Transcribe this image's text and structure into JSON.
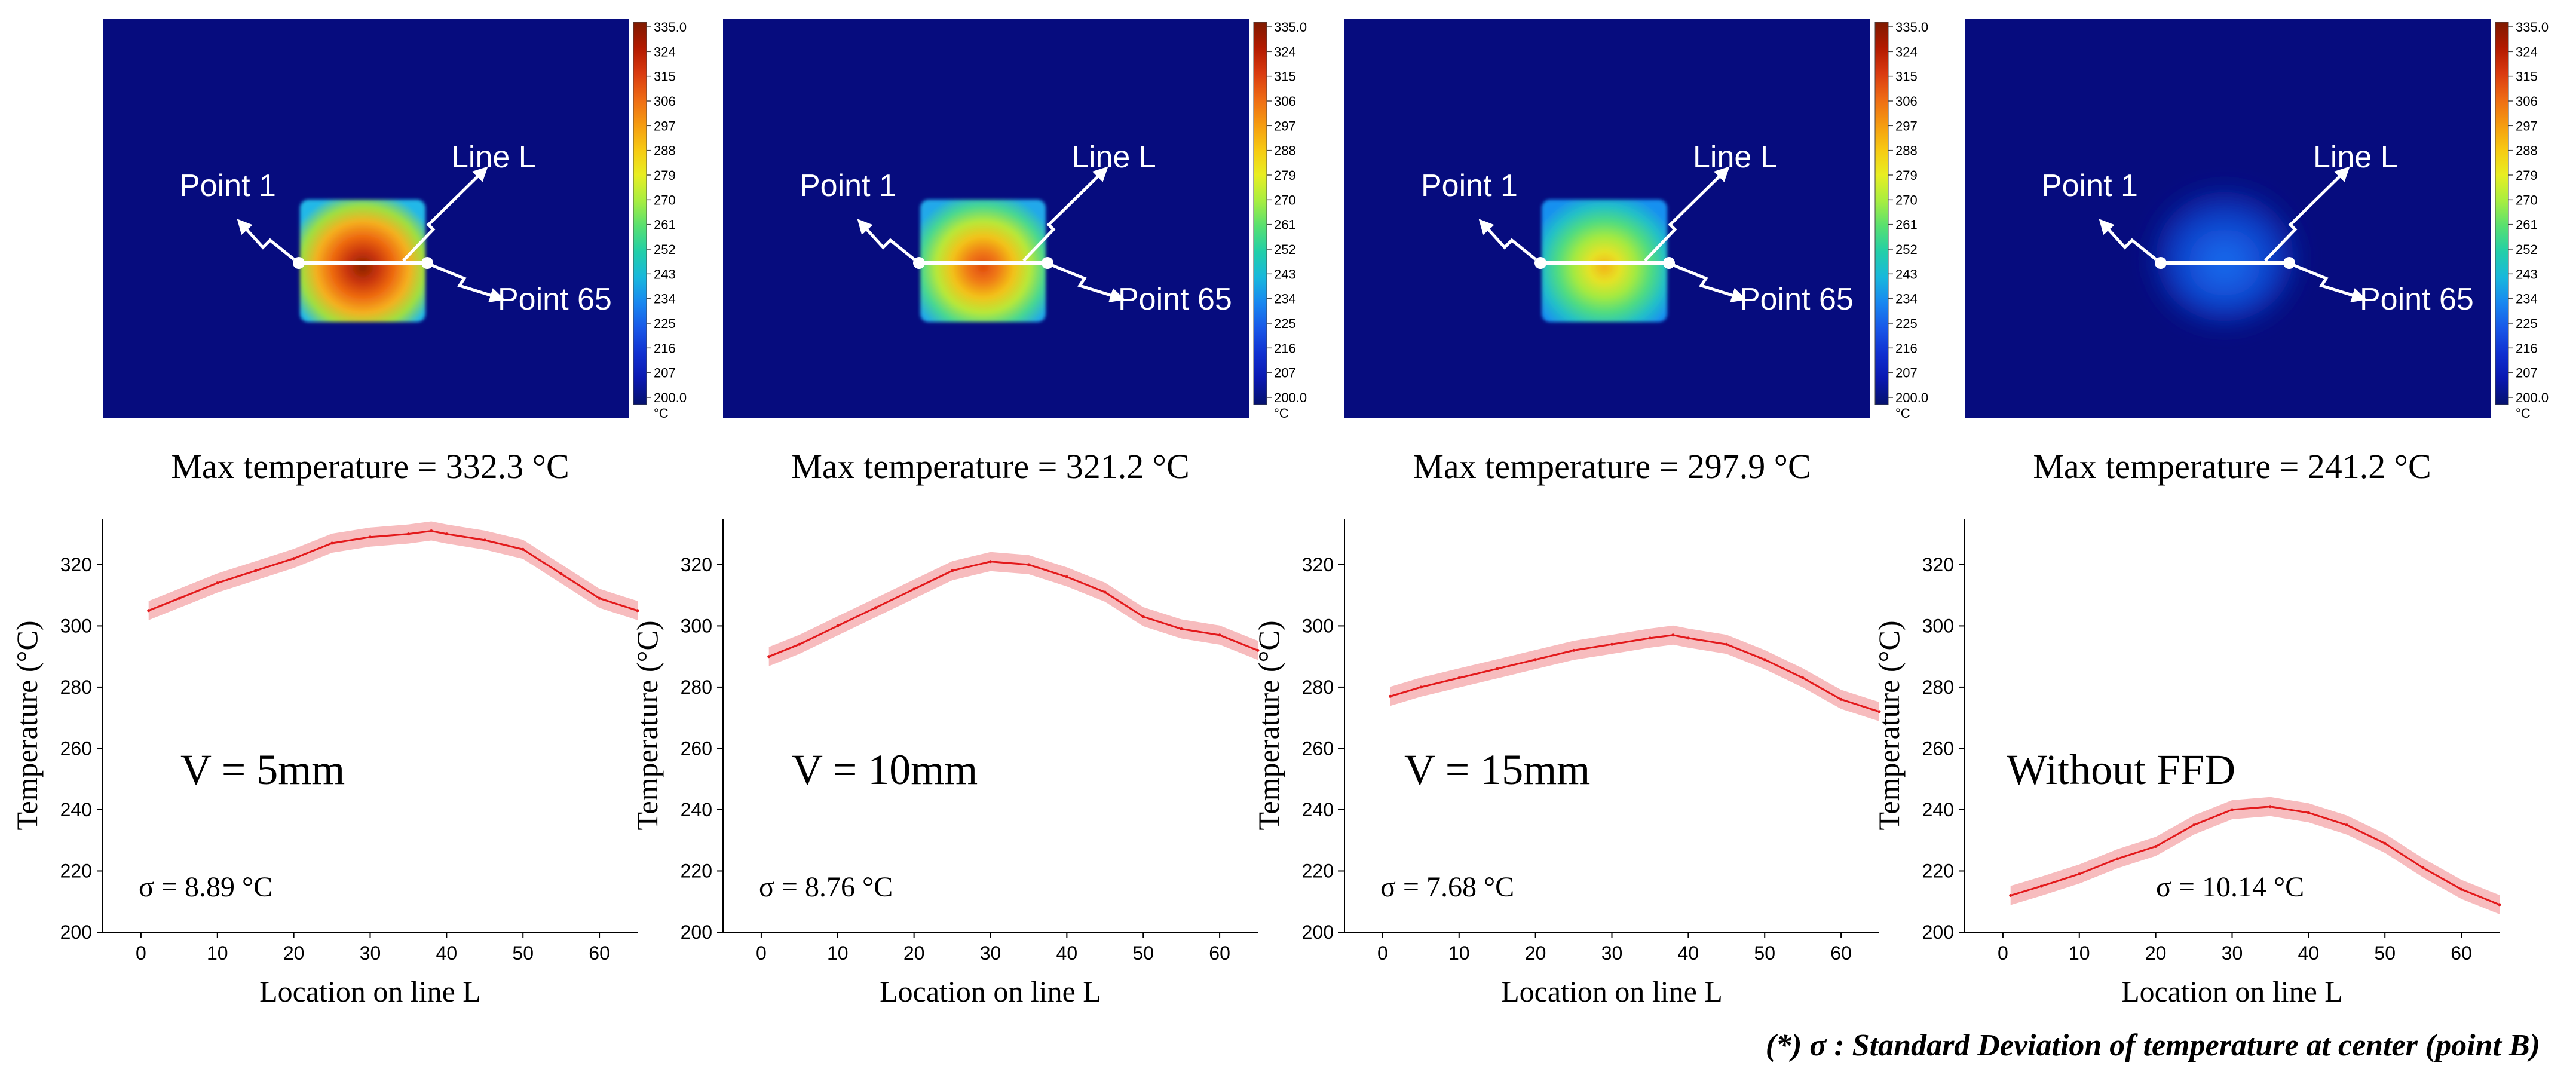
{
  "footnote": "(*) σ : Standard Deviation of temperature at center (point B)",
  "colorbar": {
    "ticks": [
      "335.0",
      "324",
      "315",
      "306",
      "297",
      "288",
      "279",
      "270",
      "261",
      "252",
      "243",
      "234",
      "225",
      "216",
      "207",
      "200.0"
    ],
    "unit": "°C",
    "colors": [
      "#7f1a00",
      "#b21a00",
      "#d93a10",
      "#ee6a14",
      "#f59a10",
      "#f7c912",
      "#e8ee22",
      "#a8ee40",
      "#58e070",
      "#22cfa8",
      "#18b8dc",
      "#1888f0",
      "#1858e8",
      "#1030d0",
      "#0a18b0",
      "#06126e"
    ]
  },
  "thermal_panels": [
    {
      "max_label": "Max temperature = 332.3 °C",
      "point1": "Point 1",
      "point65": "Point 65",
      "line_label": "Line L",
      "hotspot": "square-hot"
    },
    {
      "max_label": "Max temperature = 321.2 °C",
      "point1": "Point 1",
      "point65": "Point 65",
      "line_label": "Line L",
      "hotspot": "square-warm"
    },
    {
      "max_label": "Max temperature = 297.9 °C",
      "point1": "Point 1",
      "point65": "Point 65",
      "line_label": "Line L",
      "hotspot": "square-mild"
    },
    {
      "max_label": "Max temperature = 241.2 °C",
      "point1": "Point 1",
      "point65": "Point 65",
      "line_label": "Line L",
      "hotspot": "diffuse-blue"
    }
  ],
  "chart_data": [
    {
      "type": "line",
      "title": "V = 5mm",
      "annotation": "σ = 8.89 °C",
      "xlabel": "Location on line L",
      "ylabel": "Temperature (°C)",
      "xlim": [
        -5,
        65
      ],
      "ylim": [
        200,
        335
      ],
      "xticks": [
        0,
        10,
        20,
        30,
        40,
        50,
        60
      ],
      "yticks": [
        200,
        220,
        240,
        260,
        280,
        300,
        320
      ],
      "series": [
        {
          "name": "Temperature",
          "color": "#e31a1c",
          "band_color": "#f4a6a8",
          "x": [
            1,
            5,
            10,
            15,
            20,
            25,
            30,
            35,
            38,
            40,
            45,
            50,
            55,
            60,
            65
          ],
          "values": [
            305,
            309,
            314,
            318,
            322,
            327,
            329,
            330,
            331,
            330,
            328,
            325,
            317,
            309,
            305
          ]
        }
      ]
    },
    {
      "type": "line",
      "title": "V = 10mm",
      "annotation": "σ = 8.76 °C",
      "xlabel": "Location on line L",
      "ylabel": "Temperature (°C)",
      "xlim": [
        -5,
        65
      ],
      "ylim": [
        200,
        335
      ],
      "xticks": [
        0,
        10,
        20,
        30,
        40,
        50,
        60
      ],
      "yticks": [
        200,
        220,
        240,
        260,
        280,
        300,
        320
      ],
      "series": [
        {
          "name": "Temperature",
          "color": "#e31a1c",
          "band_color": "#f4a6a8",
          "x": [
            1,
            5,
            10,
            15,
            20,
            25,
            30,
            35,
            40,
            45,
            50,
            55,
            60,
            65
          ],
          "values": [
            290,
            294,
            300,
            306,
            312,
            318,
            321,
            320,
            316,
            311,
            303,
            299,
            297,
            292
          ]
        }
      ]
    },
    {
      "type": "line",
      "title": "V = 15mm",
      "annotation": "σ = 7.68 °C",
      "xlabel": "Location on line L",
      "ylabel": "Temperature (°C)",
      "xlim": [
        -5,
        65
      ],
      "ylim": [
        200,
        335
      ],
      "xticks": [
        0,
        10,
        20,
        30,
        40,
        50,
        60
      ],
      "yticks": [
        200,
        220,
        240,
        260,
        280,
        300,
        320
      ],
      "series": [
        {
          "name": "Temperature",
          "color": "#e31a1c",
          "band_color": "#f4a6a8",
          "x": [
            1,
            5,
            10,
            15,
            20,
            25,
            30,
            35,
            38,
            40,
            45,
            50,
            55,
            60,
            65
          ],
          "values": [
            277,
            280,
            283,
            286,
            289,
            292,
            294,
            296,
            297,
            296,
            294,
            289,
            283,
            276,
            272
          ]
        }
      ]
    },
    {
      "type": "line",
      "title": "Without FFD",
      "annotation": "σ = 10.14 °C",
      "xlabel": "Location on line L",
      "ylabel": "Temperature (°C)",
      "xlim": [
        -5,
        65
      ],
      "ylim": [
        200,
        335
      ],
      "xticks": [
        0,
        10,
        20,
        30,
        40,
        50,
        60
      ],
      "yticks": [
        200,
        220,
        240,
        260,
        280,
        300,
        320
      ],
      "series": [
        {
          "name": "Temperature",
          "color": "#e31a1c",
          "band_color": "#f4a6a8",
          "x": [
            1,
            5,
            10,
            15,
            20,
            25,
            30,
            35,
            40,
            45,
            50,
            55,
            60,
            65
          ],
          "values": [
            212,
            215,
            219,
            224,
            228,
            235,
            240,
            241,
            239,
            235,
            229,
            221,
            214,
            209
          ]
        }
      ]
    }
  ]
}
